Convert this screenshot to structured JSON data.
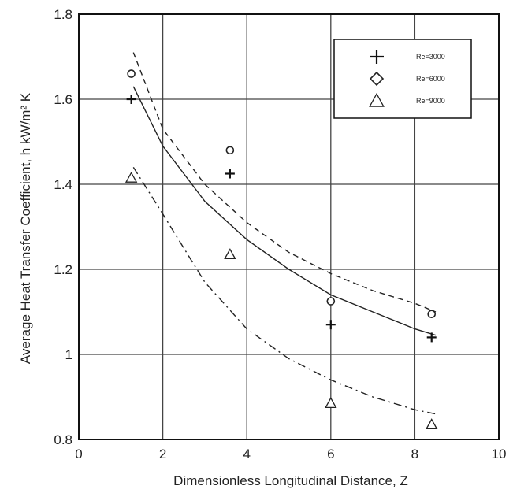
{
  "chart_data": {
    "type": "scatter",
    "title": "",
    "xlabel": "Dimensionless Longitudinal Distance, Z",
    "ylabel": "Average Heat Transfer Coefficient, h kW/m² K",
    "xlim": [
      0,
      10
    ],
    "ylim": [
      0.8,
      1.8
    ],
    "xticks": [
      "0",
      "2",
      "4",
      "6",
      "8",
      "10"
    ],
    "yticks": [
      "0.8",
      "1",
      "1.2",
      "1.4",
      "1.6",
      "1.8"
    ],
    "grid": true,
    "legend_position": "top-right",
    "series": [
      {
        "name": "Re=3000",
        "marker": "plus",
        "line_style": "solid",
        "x": [
          1.25,
          3.6,
          6.0,
          8.4
        ],
        "y": [
          1.6,
          1.425,
          1.07,
          1.04
        ],
        "fit_x": [
          1.3,
          2.0,
          3.0,
          4.0,
          5.0,
          6.0,
          7.0,
          8.0,
          8.5
        ],
        "fit_y": [
          1.63,
          1.49,
          1.36,
          1.27,
          1.2,
          1.14,
          1.1,
          1.06,
          1.045
        ]
      },
      {
        "name": "Re=6000",
        "marker": "diamond",
        "line_style": "dashed",
        "x": [
          1.25,
          3.6,
          6.0,
          8.4
        ],
        "y": [
          1.66,
          1.48,
          1.125,
          1.095
        ],
        "fit_x": [
          1.3,
          2.0,
          3.0,
          4.0,
          5.0,
          6.0,
          7.0,
          8.0,
          8.5
        ],
        "fit_y": [
          1.71,
          1.53,
          1.4,
          1.31,
          1.24,
          1.19,
          1.15,
          1.12,
          1.1
        ]
      },
      {
        "name": "Re=9000",
        "marker": "triangle",
        "line_style": "dashdot",
        "x": [
          1.25,
          3.6,
          6.0,
          8.4
        ],
        "y": [
          1.415,
          1.235,
          0.885,
          0.835
        ],
        "fit_x": [
          1.3,
          2.0,
          3.0,
          4.0,
          5.0,
          6.0,
          7.0,
          8.0,
          8.5
        ],
        "fit_y": [
          1.44,
          1.33,
          1.17,
          1.06,
          0.99,
          0.94,
          0.9,
          0.87,
          0.86
        ]
      }
    ]
  }
}
